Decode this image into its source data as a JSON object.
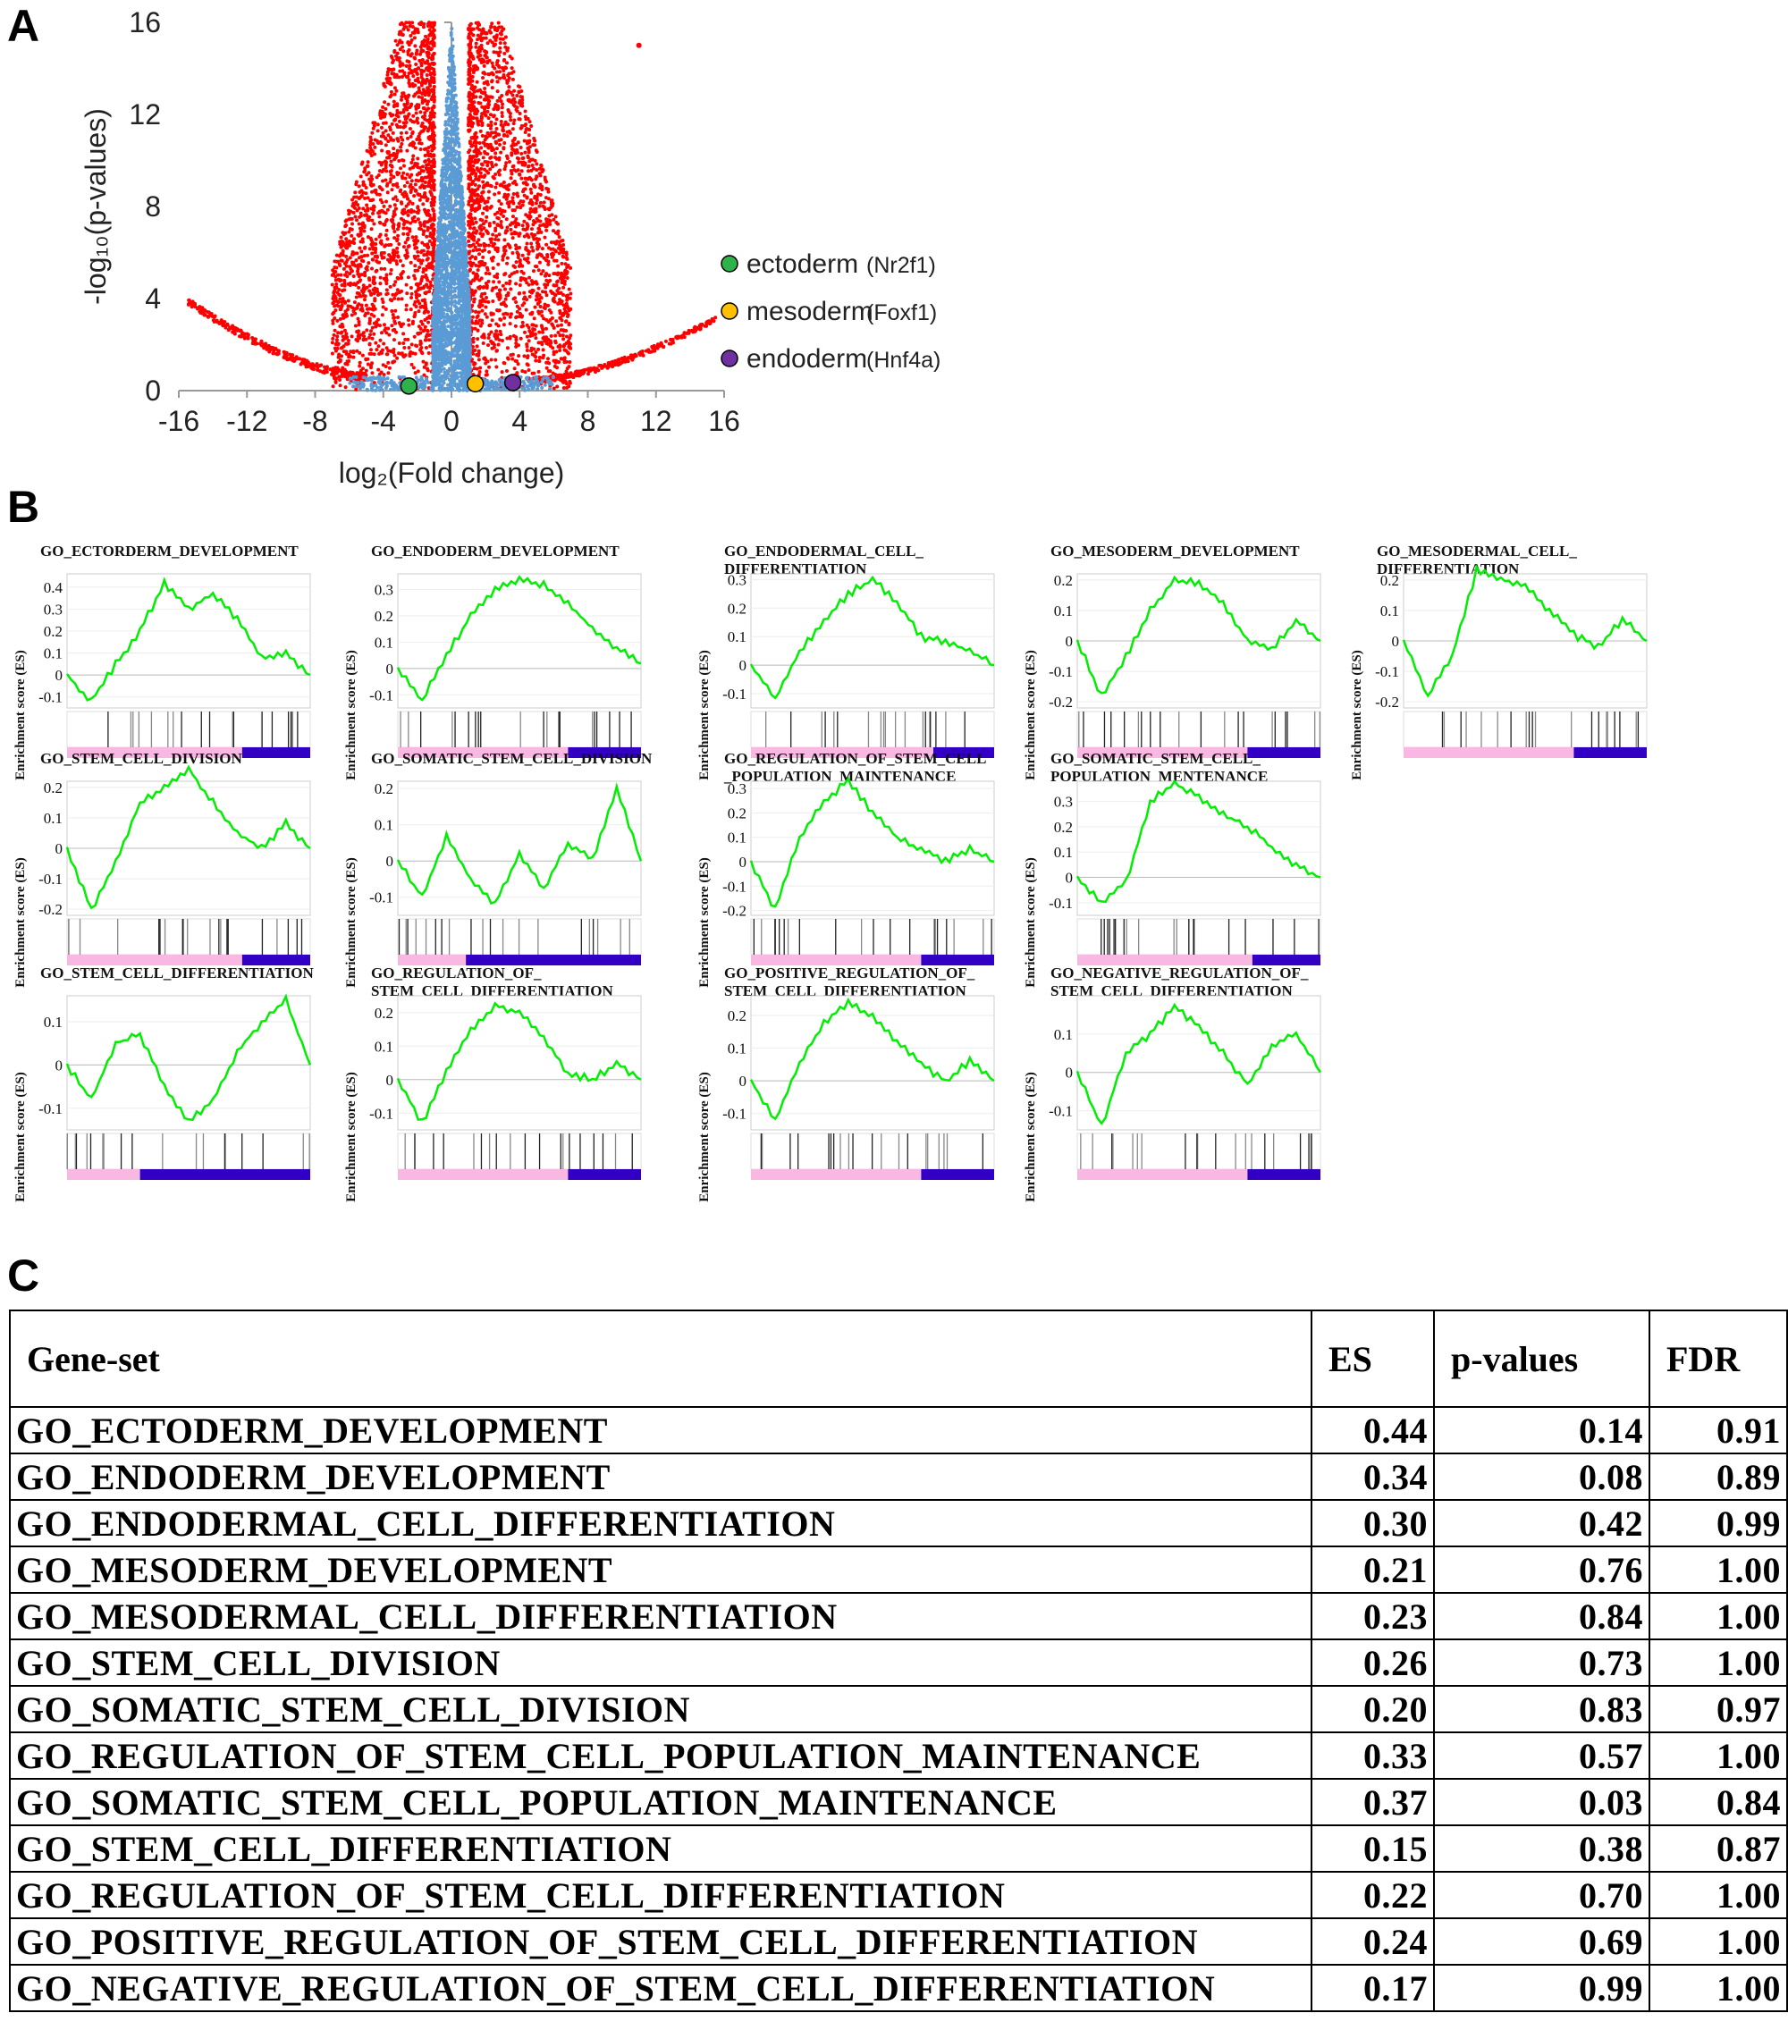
{
  "panels": {
    "a": "A",
    "b": "B",
    "c": "C"
  },
  "volcano": {
    "type": "scatter",
    "ylabel": "-log₁₀(p-values)",
    "xlabel": "log₂(Fold change)",
    "xlim": [
      -16,
      16
    ],
    "ylim": [
      0,
      16
    ],
    "xticks": [
      -16,
      -12,
      -8,
      -4,
      0,
      4,
      8,
      12,
      16
    ],
    "yticks": [
      0,
      4,
      8,
      12,
      16
    ],
    "colors": {
      "significant": "#ff0000",
      "not_significant": "#5b9bd5"
    },
    "legend": [
      {
        "label": "ectoderm",
        "gene": "(Nr2f1)",
        "color": "#2db34a",
        "x": -2.5,
        "y": 0.2
      },
      {
        "label": "mesoderm",
        "gene": "(Foxf1)",
        "color": "#ffc000",
        "x": 1.4,
        "y": 0.3
      },
      {
        "label": "endoderm",
        "gene": "(Hnf4a)",
        "color": "#7030a0",
        "x": 3.6,
        "y": 0.35
      }
    ]
  },
  "gsea": {
    "ylabel": "Enrichment score (ES)",
    "colors": {
      "curve": "#00ee00",
      "pos": "#f9b8e2",
      "neg": "#3100c4"
    },
    "plots": [
      {
        "title": "GO_ECTORDERM_DEVELOPMENT",
        "ylim": [
          -0.15,
          0.46
        ],
        "yticks": [
          0.4,
          0.3,
          0.2,
          0.1,
          0.0,
          -0.1
        ],
        "es": [
          0.0,
          -0.12,
          0.05,
          0.2,
          0.42,
          0.3,
          0.37,
          0.25,
          0.08,
          0.1,
          0.0
        ],
        "neg_frac": 0.28
      },
      {
        "title": "GO_ENDODERM_DEVELOPMENT",
        "ylim": [
          -0.15,
          0.36
        ],
        "yticks": [
          0.3,
          0.2,
          0.1,
          0.0,
          -0.1
        ],
        "es": [
          0.0,
          -0.12,
          0.05,
          0.2,
          0.3,
          0.34,
          0.32,
          0.25,
          0.15,
          0.08,
          0.02
        ],
        "neg_frac": 0.3
      },
      {
        "title": "GO_ENDODERMAL_CELL_\nDIFFERENTIATION",
        "ylim": [
          -0.15,
          0.32
        ],
        "yticks": [
          0.3,
          0.2,
          0.1,
          0.0,
          -0.1
        ],
        "es": [
          0.0,
          -0.12,
          0.05,
          0.15,
          0.25,
          0.3,
          0.22,
          0.1,
          0.08,
          0.05,
          0.0
        ],
        "neg_frac": 0.25
      },
      {
        "title": "GO_MESODERM_DEVELOPMENT",
        "ylim": [
          -0.22,
          0.22
        ],
        "yticks": [
          0.2,
          0.1,
          0.0,
          -0.1,
          -0.2
        ],
        "es": [
          0.0,
          -0.18,
          -0.05,
          0.1,
          0.2,
          0.19,
          0.12,
          0.0,
          -0.03,
          0.07,
          0.0
        ],
        "neg_frac": 0.3
      },
      {
        "title": "GO_MESODERMAL_CELL_\nDIFFERENTIATION",
        "ylim": [
          -0.22,
          0.22
        ],
        "yticks": [
          0.2,
          0.1,
          0.0,
          -0.1,
          -0.2
        ],
        "es": [
          0.0,
          -0.18,
          -0.05,
          0.23,
          0.2,
          0.18,
          0.1,
          0.02,
          -0.02,
          0.07,
          0.0
        ],
        "neg_frac": 0.3
      },
      {
        "title": "GO_STEM_CELL_DIVISION",
        "ylim": [
          -0.22,
          0.22
        ],
        "yticks": [
          0.2,
          0.1,
          0.0,
          -0.1,
          -0.2
        ],
        "es": [
          0.0,
          -0.2,
          -0.05,
          0.15,
          0.2,
          0.26,
          0.15,
          0.05,
          0.0,
          0.08,
          0.0
        ],
        "neg_frac": 0.28
      },
      {
        "title": "GO_SOMATIC_STEM_CELL_DIVISION",
        "ylim": [
          -0.15,
          0.22
        ],
        "yticks": [
          0.2,
          0.1,
          0.0,
          -0.1
        ],
        "es": [
          0.0,
          -0.1,
          0.07,
          -0.05,
          -0.12,
          0.02,
          -0.08,
          0.05,
          0.0,
          0.2,
          0.0
        ],
        "neg_frac": 0.72
      },
      {
        "title": "GO_REGULATION_OF_STEM_CELL\n_POPULATION_MAINTENANCE",
        "ylim": [
          -0.22,
          0.33
        ],
        "yticks": [
          0.3,
          0.2,
          0.1,
          0.0,
          -0.1,
          -0.2
        ],
        "es": [
          0.0,
          -0.2,
          0.1,
          0.25,
          0.33,
          0.2,
          0.1,
          0.05,
          0.0,
          0.05,
          0.0
        ],
        "neg_frac": 0.3
      },
      {
        "title": "GO_SOMATIC_STEM_CELL_\nPOPULATION_MENTENANCE",
        "ylim": [
          -0.15,
          0.38
        ],
        "yticks": [
          0.3,
          0.2,
          0.1,
          0.0,
          -0.1
        ],
        "es": [
          0.0,
          -0.1,
          -0.02,
          0.3,
          0.37,
          0.32,
          0.25,
          0.2,
          0.12,
          0.05,
          0.0
        ],
        "neg_frac": 0.28
      },
      {
        "title": "GO_STEM_CELL_DIFFERENTIATION",
        "ylim": [
          -0.15,
          0.16
        ],
        "yticks": [
          0.1,
          0.0,
          -0.1
        ],
        "es": [
          0.0,
          -0.08,
          0.05,
          0.07,
          -0.05,
          -0.13,
          -0.08,
          0.03,
          0.1,
          0.15,
          0.0
        ],
        "neg_frac": 0.7
      },
      {
        "title": "GO_REGULATION_OF_\nSTEM_CELL_DIFFERENTIATION",
        "ylim": [
          -0.15,
          0.25
        ],
        "yticks": [
          0.2,
          0.1,
          0.0,
          -0.1
        ],
        "es": [
          0.0,
          -0.13,
          0.02,
          0.15,
          0.22,
          0.2,
          0.12,
          0.02,
          0.0,
          0.05,
          0.0
        ],
        "neg_frac": 0.3
      },
      {
        "title": "GO_POSITIVE_REGULATION_OF_\nSTEM_CELL_DIFFERENTIATION",
        "ylim": [
          -0.15,
          0.26
        ],
        "yticks": [
          0.2,
          0.1,
          0.0,
          -0.1
        ],
        "es": [
          0.0,
          -0.12,
          0.05,
          0.18,
          0.24,
          0.2,
          0.12,
          0.05,
          0.0,
          0.06,
          0.0
        ],
        "neg_frac": 0.3
      },
      {
        "title": "GO_NEGATIVE_REGULATION_OF_\nSTEM_CELL_DIFFERENTIATION",
        "ylim": [
          -0.15,
          0.2
        ],
        "yticks": [
          0.1,
          0.0,
          -0.1
        ],
        "es": [
          0.0,
          -0.14,
          0.05,
          0.1,
          0.17,
          0.12,
          0.05,
          -0.03,
          0.07,
          0.1,
          0.0
        ],
        "neg_frac": 0.3
      }
    ]
  },
  "chart_data": {
    "type": "table",
    "columns": [
      "Gene-set",
      "ES",
      "p-values",
      "FDR"
    ],
    "rows": [
      [
        "GO_ECTODERM_DEVELOPMENT",
        "0.44",
        "0.14",
        "0.91"
      ],
      [
        "GO_ENDODERM_DEVELOPMENT",
        "0.34",
        "0.08",
        "0.89"
      ],
      [
        "GO_ENDODERMAL_CELL_DIFFERENTIATION",
        "0.30",
        "0.42",
        "0.99"
      ],
      [
        "GO_MESODERM_DEVELOPMENT",
        "0.21",
        "0.76",
        "1.00"
      ],
      [
        "GO_MESODERMAL_CELL_DIFFERENTIATION",
        "0.23",
        "0.84",
        "1.00"
      ],
      [
        "GO_STEM_CELL_DIVISION",
        "0.26",
        "0.73",
        "1.00"
      ],
      [
        "GO_SOMATIC_STEM_CELL_DIVISION",
        "0.20",
        "0.83",
        "0.97"
      ],
      [
        "GO_REGULATION_OF_STEM_CELL_POPULATION_MAINTENANCE",
        "0.33",
        "0.57",
        "1.00"
      ],
      [
        "GO_SOMATIC_STEM_CELL_POPULATION_MAINTENANCE",
        "0.37",
        "0.03",
        "0.84"
      ],
      [
        "GO_STEM_CELL_DIFFERENTIATION",
        "0.15",
        "0.38",
        "0.87"
      ],
      [
        "GO_REGULATION_OF_STEM_CELL_DIFFERENTIATION",
        "0.22",
        "0.70",
        "1.00"
      ],
      [
        "GO_POSITIVE_REGULATION_OF_STEM_CELL_DIFFERENTIATION",
        "0.24",
        "0.69",
        "1.00"
      ],
      [
        "GO_NEGATIVE_REGULATION_OF_STEM_CELL_DIFFERENTIATION",
        "0.17",
        "0.99",
        "1.00"
      ]
    ]
  }
}
